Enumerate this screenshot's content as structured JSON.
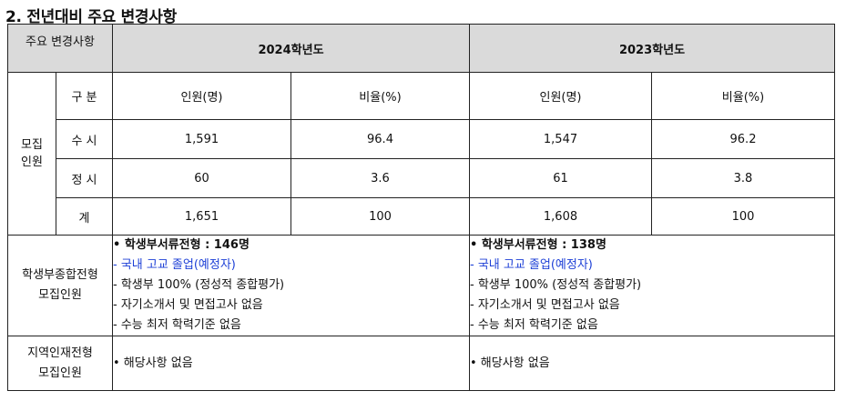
{
  "title": "2. 전년대비 주요 변경사항",
  "header": {
    "col_label": "주요 변경사항",
    "year_2024": "2024학년도",
    "year_2023": "2023학년도"
  },
  "recruit": {
    "group_label_1": "모집",
    "group_label_2": "인원",
    "division": "구 분",
    "count_header": "인원(명)",
    "ratio_header": "비율(%)",
    "rows": [
      {
        "label": "수 시",
        "c2024": "1,591",
        "r2024": "96.4",
        "c2023": "1,547",
        "r2023": "96.2"
      },
      {
        "label": "정 시",
        "c2024": "60",
        "r2024": "3.6",
        "c2023": "61",
        "r2023": "3.8"
      },
      {
        "label": "계",
        "c2024": "1,651",
        "r2024": "100",
        "c2023": "1,608",
        "r2023": "100"
      }
    ]
  },
  "comprehensive": {
    "label_1": "학생부종합전형",
    "label_2": "모집인원",
    "y2024": {
      "heading": "• 학생부서류전형 : 146명",
      "lines": [
        "- 국내 고교 졸업(예정자)",
        "- 학생부 100% (정성적 종합평가)",
        "- 자기소개서 및 면접고사 없음",
        "- 수능 최저 학력기준 없음"
      ]
    },
    "y2023": {
      "heading": "• 학생부서류전형 : 138명",
      "lines": [
        "- 국내 고교 졸업(예정자)",
        "- 학생부 100% (정성적 종합평가)",
        "- 자기소개서 및 면접고사 없음",
        "- 수능 최저 학력기준 없음"
      ]
    }
  },
  "regional": {
    "label_1": "지역인재전형",
    "label_2": "모집인원",
    "y2024": "• 해당사항 없음",
    "y2023": "• 해당사항 없음"
  },
  "colors": {
    "header_bg": "#dadada",
    "highlight": "#1c3fd6"
  }
}
